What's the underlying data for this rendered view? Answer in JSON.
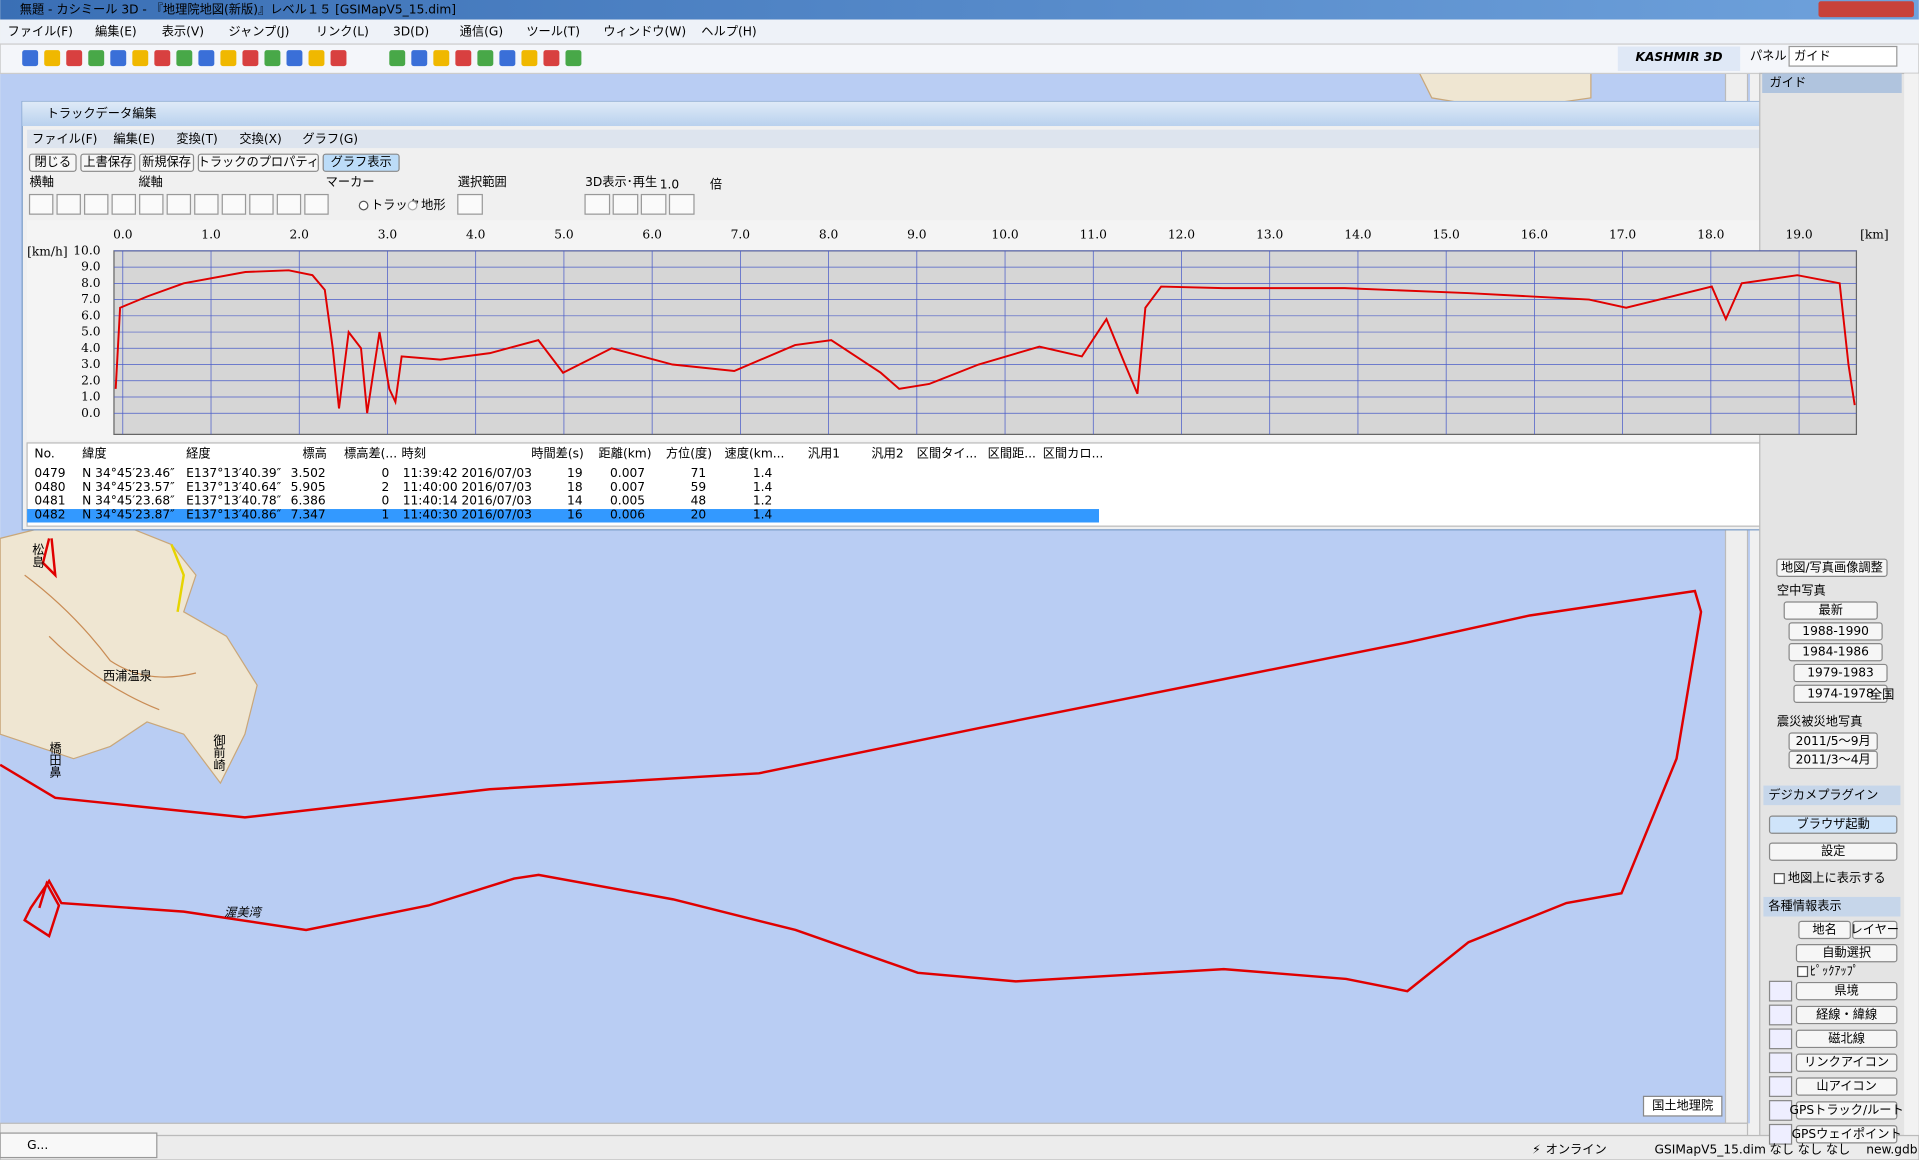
{
  "window": {
    "title": "無題 - カシミール 3D - 『地理院地図(新版)』レベル１５ [GSIMapV5_15.dim]"
  },
  "menu": [
    "ファイル(F)",
    "編集(E)",
    "表示(V)",
    "ジャンプ(J)",
    "リンク(L)",
    "3D(D)",
    "通信(G)",
    "ツール(T)",
    "ウィンドウ(W)",
    "ヘルプ(H)"
  ],
  "toolbar": {
    "logo": "KASHMIR 3D",
    "panel_label": "パネル",
    "panel_select": "ガイド"
  },
  "track_editor": {
    "title": "トラックデータ編集",
    "menu": [
      "ファイル(F)",
      "編集(E)",
      "変換(T)",
      "交換(X)",
      "グラフ(G)"
    ],
    "buttons": [
      "閉じる",
      "上書保存",
      "新規保存",
      "トラックのプロパティ",
      "グラフ表示"
    ],
    "controls": {
      "horizontal": "横軸",
      "vertical": "縦軸",
      "marker": "マーカー",
      "selection": "選択範囲",
      "playback": "3D表示･再生",
      "speed": "1.0",
      "times": "倍",
      "track": "トラック",
      "terrain": "地形"
    },
    "graph": {
      "type": "line",
      "x_unit": "[km]",
      "y_unit": "[km/h]",
      "color": "#e00000",
      "grid": true,
      "xlim": [
        -0.1,
        19.65
      ],
      "ylim": [
        -1.3,
        10.0
      ],
      "xticks": [
        {
          "value": 0,
          "label": "0.0"
        },
        {
          "value": 1,
          "label": "1.0"
        },
        {
          "value": 2,
          "label": "2.0"
        },
        {
          "value": 3,
          "label": "3.0"
        },
        {
          "value": 4,
          "label": "4.0"
        },
        {
          "value": 5,
          "label": "5.0"
        },
        {
          "value": 6,
          "label": "6.0"
        },
        {
          "value": 7,
          "label": "7.0"
        },
        {
          "value": 8,
          "label": "8.0"
        },
        {
          "value": 9,
          "label": "9.0"
        },
        {
          "value": 10,
          "label": "10.0"
        },
        {
          "value": 11,
          "label": "11.0"
        },
        {
          "value": 12,
          "label": "12.0"
        },
        {
          "value": 13,
          "label": "13.0"
        },
        {
          "value": 14,
          "label": "14.0"
        },
        {
          "value": 15,
          "label": "15.0"
        },
        {
          "value": 16,
          "label": "16.0"
        },
        {
          "value": 17,
          "label": "17.0"
        },
        {
          "value": 18,
          "label": "18.0"
        },
        {
          "value": 19,
          "label": "19.0"
        }
      ],
      "yticks": [
        {
          "value": 0,
          "label": "0.0"
        },
        {
          "value": 1,
          "label": "1.0"
        },
        {
          "value": 2,
          "label": "2.0"
        },
        {
          "value": 3,
          "label": "3.0"
        },
        {
          "value": 4,
          "label": "4.0"
        },
        {
          "value": 5,
          "label": "5.0"
        },
        {
          "value": 6,
          "label": "6.0"
        },
        {
          "value": 7,
          "label": "7.0"
        },
        {
          "value": 8,
          "label": "8.0"
        },
        {
          "value": 9,
          "label": "9.0"
        },
        {
          "value": 10,
          "label": "10.0"
        }
      ],
      "x": [
        -0.08,
        -0.03,
        0.28,
        0.69,
        1.39,
        1.88,
        2.15,
        2.29,
        2.38,
        2.45,
        2.56,
        2.7,
        2.77,
        2.91,
        3.02,
        3.09,
        3.16,
        3.6,
        4.16,
        4.71,
        4.99,
        5.54,
        6.23,
        6.93,
        7.62,
        8.03,
        8.59,
        8.8,
        9.14,
        9.7,
        10.39,
        10.87,
        11.15,
        11.36,
        11.5,
        11.59,
        11.77,
        12.47,
        13.85,
        15.24,
        16.62,
        17.04,
        18.01,
        18.17,
        18.35,
        18.98,
        19.46,
        19.56,
        19.63
      ],
      "values": [
        1.5,
        6.5,
        7.2,
        8.0,
        8.7,
        8.8,
        8.5,
        7.6,
        4.0,
        0.3,
        5.0,
        4.0,
        0.0,
        5.0,
        1.5,
        0.7,
        3.5,
        3.3,
        3.7,
        4.5,
        2.5,
        4.0,
        3.0,
        2.6,
        4.2,
        4.5,
        2.5,
        1.5,
        1.8,
        3.0,
        4.1,
        3.5,
        5.8,
        3.0,
        1.2,
        6.5,
        7.8,
        7.7,
        7.7,
        7.4,
        7.0,
        6.5,
        7.8,
        5.8,
        8.0,
        8.5,
        8.0,
        3.0,
        0.5
      ]
    },
    "table": {
      "headers": [
        "No.",
        "緯度",
        "経度",
        "標高",
        "標高差(...",
        "時刻",
        "時間差(s)",
        "距離(km)",
        "方位(度)",
        "速度(km...",
        "汎用1",
        "汎用2",
        "区間タイ...",
        "区間距...",
        "区間カロ..."
      ],
      "rows": [
        [
          "0479",
          "N 34°45′23.46″",
          "E137°13′40.39″",
          "3.502",
          "0",
          "11:39:42 2016/07/03",
          "19",
          "0.007",
          "71",
          "1.4"
        ],
        [
          "0480",
          "N 34°45′23.57″",
          "E137°13′40.64″",
          "5.905",
          "2",
          "11:40:00 2016/07/03",
          "18",
          "0.007",
          "59",
          "1.4"
        ],
        [
          "0481",
          "N 34°45′23.68″",
          "E137°13′40.78″",
          "6.386",
          "0",
          "11:40:14 2016/07/03",
          "14",
          "0.005",
          "48",
          "1.2"
        ],
        [
          "0482",
          "N 34°45′23.87″",
          "E137°13′40.86″",
          "7.347",
          "1",
          "11:40:30 2016/07/03",
          "16",
          "0.006",
          "20",
          "1.4"
        ]
      ]
    }
  },
  "map": {
    "labels": [
      "西浦温泉",
      "渥美湾",
      "国土地理院"
    ],
    "vertical_labels": [
      "松島",
      "橋田鼻",
      "御前崎"
    ]
  },
  "side_panel": {
    "header": "ガイド",
    "adjust": "地図/写真画像調整",
    "aerial": "空中写真",
    "aerial_buttons": [
      "最新",
      "1988-1990",
      "1984-1986",
      "1979-1983",
      "1974-1978"
    ],
    "nationwide": "全国",
    "disaster": "震災被災地写真",
    "disaster_buttons": [
      "2011/5～9月",
      "2011/3～4月"
    ],
    "camera_plugin": "デジカメプラグイン",
    "browser": "ブラウザ起動",
    "settings": "設定",
    "show_on_map": "地図上に表示する",
    "info": "各種情報表示",
    "place": "地名",
    "layer": "レイヤー",
    "auto": "自動選択",
    "pickup": "ﾋﾟｯｸｱｯﾌﾟ",
    "info_buttons": [
      "県境",
      "経線・緯線",
      "磁北線",
      "リンクアイコン",
      "山アイコン",
      "GPSトラック/ルート",
      "GPSウェイポイント"
    ]
  },
  "status": {
    "online": "オンライン",
    "file": "GSIMapV5_15.dim",
    "fields": [
      "なし",
      "なし",
      "なし"
    ],
    "db": "new.gdb"
  },
  "taskbar": "G..."
}
